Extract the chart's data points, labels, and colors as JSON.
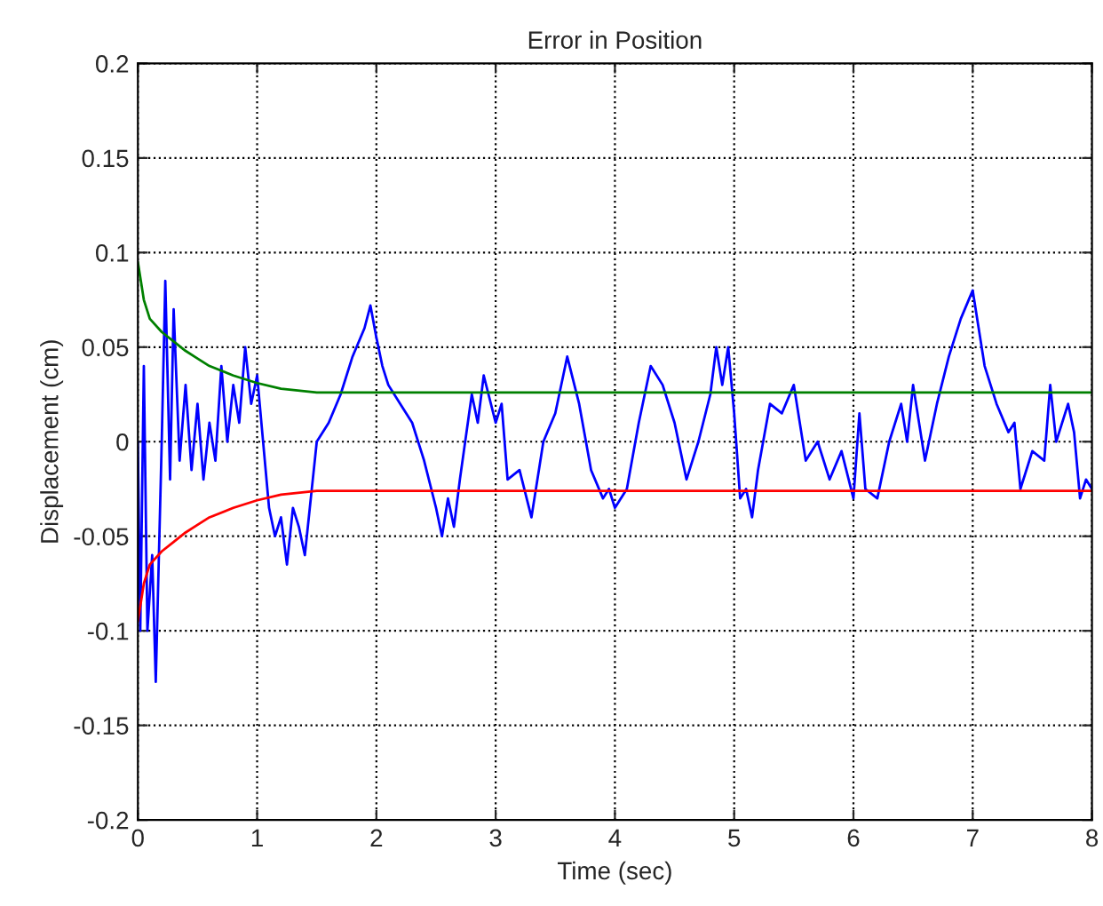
{
  "chart_data": {
    "type": "line",
    "title": "Error in Position",
    "xlabel": "Time (sec)",
    "ylabel": "Displacement (cm)",
    "xlim": [
      0,
      8
    ],
    "ylim": [
      -0.2,
      0.2
    ],
    "xticks": [
      0,
      1,
      2,
      3,
      4,
      5,
      6,
      7,
      8
    ],
    "yticks": [
      -0.2,
      -0.15,
      -0.1,
      -0.05,
      0,
      0.05,
      0.1,
      0.15,
      0.2
    ],
    "grid": true,
    "series": [
      {
        "color": "#0000ff",
        "x": [
          0,
          0.02,
          0.05,
          0.08,
          0.12,
          0.15,
          0.2,
          0.23,
          0.27,
          0.3,
          0.35,
          0.4,
          0.45,
          0.5,
          0.55,
          0.6,
          0.65,
          0.7,
          0.75,
          0.8,
          0.85,
          0.9,
          0.95,
          1.0,
          1.05,
          1.1,
          1.15,
          1.2,
          1.25,
          1.3,
          1.35,
          1.4,
          1.45,
          1.5,
          1.6,
          1.7,
          1.8,
          1.9,
          1.95,
          2.0,
          2.05,
          2.1,
          2.2,
          2.3,
          2.4,
          2.5,
          2.55,
          2.6,
          2.65,
          2.7,
          2.8,
          2.85,
          2.9,
          3.0,
          3.05,
          3.1,
          3.2,
          3.3,
          3.4,
          3.5,
          3.6,
          3.7,
          3.8,
          3.9,
          3.95,
          4.0,
          4.1,
          4.2,
          4.3,
          4.4,
          4.5,
          4.6,
          4.7,
          4.8,
          4.85,
          4.9,
          4.95,
          5.0,
          5.05,
          5.1,
          5.15,
          5.2,
          5.3,
          5.4,
          5.5,
          5.6,
          5.7,
          5.8,
          5.9,
          6.0,
          6.05,
          6.1,
          6.2,
          6.3,
          6.4,
          6.45,
          6.5,
          6.6,
          6.7,
          6.8,
          6.9,
          7.0,
          7.05,
          7.1,
          7.2,
          7.3,
          7.35,
          7.4,
          7.5,
          7.6,
          7.65,
          7.7,
          7.8,
          7.85,
          7.9,
          7.95,
          8.0
        ],
        "values": [
          0,
          -0.1,
          0.04,
          -0.1,
          -0.06,
          -0.127,
          0.0,
          0.085,
          -0.02,
          0.07,
          -0.01,
          0.03,
          -0.015,
          0.02,
          -0.02,
          0.01,
          -0.01,
          0.04,
          0.0,
          0.03,
          0.01,
          0.05,
          0.02,
          0.035,
          0.0,
          -0.035,
          -0.05,
          -0.04,
          -0.065,
          -0.035,
          -0.045,
          -0.06,
          -0.03,
          0.0,
          0.01,
          0.025,
          0.045,
          0.06,
          0.072,
          0.055,
          0.04,
          0.03,
          0.02,
          0.01,
          -0.01,
          -0.035,
          -0.05,
          -0.03,
          -0.045,
          -0.02,
          0.025,
          0.01,
          0.035,
          0.01,
          0.02,
          -0.02,
          -0.015,
          -0.04,
          0.0,
          0.015,
          0.045,
          0.02,
          -0.015,
          -0.03,
          -0.025,
          -0.035,
          -0.025,
          0.01,
          0.04,
          0.03,
          0.01,
          -0.02,
          0.0,
          0.025,
          0.05,
          0.03,
          0.05,
          0.015,
          -0.03,
          -0.025,
          -0.04,
          -0.015,
          0.02,
          0.015,
          0.03,
          -0.01,
          0.0,
          -0.02,
          -0.005,
          -0.03,
          0.015,
          -0.025,
          -0.03,
          0.0,
          0.02,
          0.0,
          0.03,
          -0.01,
          0.02,
          0.045,
          0.065,
          0.08,
          0.06,
          0.04,
          0.02,
          0.005,
          0.01,
          -0.025,
          -0.005,
          -0.01,
          0.03,
          0.0,
          0.02,
          0.005,
          -0.03,
          -0.02,
          -0.025
        ]
      },
      {
        "color": "#008000",
        "x": [
          0,
          0.05,
          0.1,
          0.2,
          0.3,
          0.4,
          0.5,
          0.6,
          0.8,
          1.0,
          1.2,
          1.5,
          2,
          8
        ],
        "values": [
          0.095,
          0.075,
          0.065,
          0.058,
          0.053,
          0.048,
          0.044,
          0.04,
          0.035,
          0.031,
          0.028,
          0.026,
          0.026,
          0.026
        ]
      },
      {
        "color": "#ff0000",
        "x": [
          0,
          0.05,
          0.1,
          0.2,
          0.3,
          0.4,
          0.5,
          0.6,
          0.8,
          1.0,
          1.2,
          1.5,
          2,
          8
        ],
        "values": [
          -0.095,
          -0.075,
          -0.065,
          -0.058,
          -0.053,
          -0.048,
          -0.044,
          -0.04,
          -0.035,
          -0.031,
          -0.028,
          -0.026,
          -0.026,
          -0.026
        ]
      }
    ]
  }
}
